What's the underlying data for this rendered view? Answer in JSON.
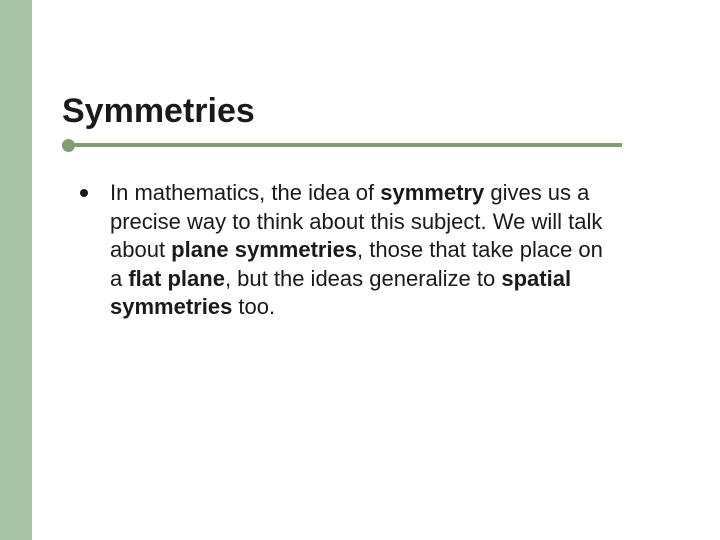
{
  "slide": {
    "title": "Symmetries",
    "accent_color": "#829c74",
    "sidebar_color": "#a8c4a8",
    "text_color": "#1a1a1a",
    "background_color": "#ffffff",
    "title_fontsize": 34,
    "body_fontsize": 22,
    "bullets": [
      {
        "segments": [
          {
            "text": "In mathematics, the idea of ",
            "bold": false
          },
          {
            "text": "symmetry",
            "bold": true
          },
          {
            "text": " gives us a precise way to think about this subject. We will talk about ",
            "bold": false
          },
          {
            "text": "plane symmetries",
            "bold": true
          },
          {
            "text": ", those that take place on a ",
            "bold": false
          },
          {
            "text": "flat plane",
            "bold": true
          },
          {
            "text": ", but the ideas generalize to ",
            "bold": false
          },
          {
            "text": "spatial symmetries",
            "bold": true
          },
          {
            "text": " too.",
            "bold": false
          }
        ]
      }
    ]
  }
}
